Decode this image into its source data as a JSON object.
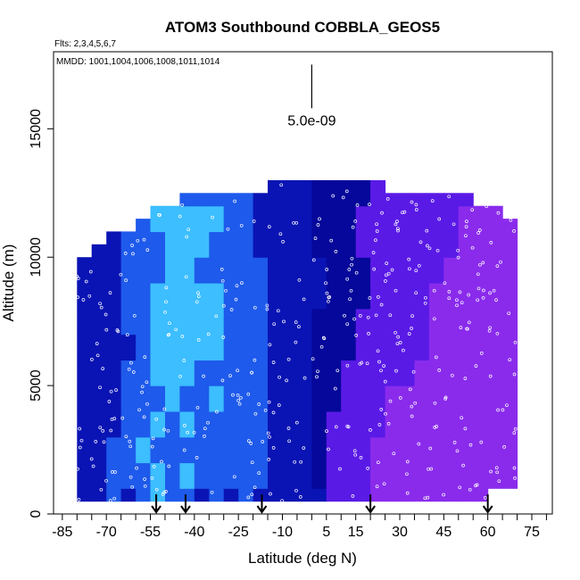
{
  "chart_data": {
    "type": "heatmap",
    "title": "ATOM3 Southbound COBBLA_GEOS5",
    "flights_label": "Flts: 2,3,4,5,6,7",
    "mmdd_label": "MMDD: 1001,1004,1006,1008,1011,1014",
    "xlabel": "Latitude (deg N)",
    "ylabel": "Altitude (m)",
    "xlim": [
      -88,
      82
    ],
    "ylim": [
      0,
      18000
    ],
    "x_ticks": [
      -85,
      -70,
      -55,
      -40,
      -25,
      -10,
      5,
      15,
      30,
      45,
      60,
      75
    ],
    "x_minor_ticks": [
      -80,
      -75,
      -65,
      -60,
      -50,
      -45,
      -35,
      -30,
      -20,
      -15,
      -5,
      0,
      10,
      20,
      25,
      35,
      40,
      50,
      55,
      65,
      70,
      80
    ],
    "y_ticks": [
      0,
      5000,
      10000,
      15000
    ],
    "scale_bar_label": "5.0e-09",
    "scale_bar_x": 0,
    "scale_bar_y": [
      15800,
      17500
    ],
    "profile_arrows_lat": [
      -53,
      -43,
      -17,
      20,
      60
    ],
    "colors": {
      "dark_blue": "#0a14b4",
      "mid_blue": "#1e5aeb",
      "light_blue": "#3cbeff",
      "navy": "#05089a",
      "violet": "#5a1ae6",
      "purple": "#8a2bec"
    },
    "envelope": {
      "lat_edges": [
        -80,
        -75,
        -70,
        -65,
        -60,
        -55,
        -50,
        -45,
        -40,
        -35,
        -30,
        -25,
        -20,
        -15,
        -10,
        -5,
        0,
        5,
        10,
        15,
        20,
        25,
        30,
        35,
        40,
        45,
        50,
        55,
        60,
        65,
        70
      ],
      "ceilings": [
        10000,
        10500,
        11000,
        11000,
        11500,
        12000,
        12000,
        12500,
        12500,
        12500,
        12500,
        12500,
        12500,
        13000,
        13000,
        13000,
        13000,
        13000,
        13000,
        13000,
        13000,
        12500,
        12500,
        12500,
        12500,
        12500,
        12500,
        12000,
        12000,
        11500
      ],
      "floors": [
        500,
        500,
        500,
        500,
        500,
        500,
        500,
        500,
        500,
        500,
        500,
        500,
        500,
        500,
        500,
        500,
        500,
        500,
        500,
        500,
        500,
        500,
        500,
        500,
        500,
        500,
        500,
        500,
        1000,
        1000
      ]
    },
    "altitude_bins": [
      0,
      1000,
      2000,
      3000,
      4000,
      5000,
      6000,
      7000,
      8000,
      9000,
      10000,
      11000,
      12000,
      13000
    ],
    "concentration_grid_levels": [
      [
        0,
        0,
        1,
        0,
        1,
        2,
        1,
        1,
        0,
        1,
        0,
        1,
        0,
        0,
        0,
        0,
        0,
        4,
        4,
        4,
        5,
        5,
        5,
        5,
        5,
        5,
        5,
        5,
        5,
        5
      ],
      [
        0,
        0,
        1,
        1,
        1,
        2,
        1,
        2,
        1,
        1,
        1,
        1,
        1,
        0,
        0,
        0,
        3,
        4,
        4,
        4,
        5,
        5,
        5,
        5,
        5,
        5,
        5,
        5,
        5,
        5
      ],
      [
        0,
        0,
        1,
        1,
        2,
        1,
        1,
        1,
        1,
        1,
        1,
        1,
        1,
        0,
        0,
        0,
        3,
        4,
        4,
        4,
        5,
        5,
        5,
        5,
        5,
        5,
        5,
        5,
        5,
        5
      ],
      [
        0,
        0,
        0,
        1,
        1,
        2,
        1,
        2,
        1,
        1,
        1,
        1,
        1,
        0,
        0,
        0,
        3,
        4,
        4,
        4,
        4,
        5,
        5,
        5,
        5,
        5,
        5,
        5,
        5,
        5
      ],
      [
        0,
        0,
        0,
        1,
        1,
        1,
        2,
        1,
        1,
        2,
        1,
        1,
        1,
        0,
        0,
        0,
        3,
        3,
        4,
        4,
        4,
        5,
        5,
        5,
        5,
        5,
        5,
        5,
        5,
        5
      ],
      [
        0,
        0,
        0,
        1,
        1,
        2,
        2,
        2,
        1,
        1,
        1,
        1,
        1,
        0,
        0,
        0,
        3,
        3,
        4,
        4,
        4,
        4,
        4,
        5,
        5,
        5,
        5,
        5,
        5,
        5
      ],
      [
        0,
        0,
        0,
        0,
        1,
        2,
        2,
        2,
        2,
        2,
        1,
        1,
        1,
        0,
        0,
        0,
        3,
        3,
        3,
        4,
        4,
        4,
        4,
        4,
        5,
        5,
        5,
        5,
        5,
        5
      ],
      [
        0,
        0,
        0,
        1,
        1,
        2,
        2,
        2,
        2,
        2,
        1,
        1,
        1,
        0,
        0,
        0,
        3,
        3,
        3,
        4,
        4,
        4,
        4,
        4,
        5,
        5,
        5,
        5,
        5,
        5
      ],
      [
        0,
        0,
        0,
        1,
        1,
        2,
        2,
        2,
        2,
        2,
        1,
        1,
        1,
        0,
        0,
        0,
        0,
        3,
        3,
        3,
        4,
        4,
        4,
        4,
        5,
        5,
        5,
        5,
        5,
        5
      ],
      [
        0,
        0,
        0,
        1,
        1,
        1,
        2,
        2,
        1,
        1,
        1,
        1,
        1,
        0,
        0,
        0,
        0,
        3,
        3,
        3,
        4,
        4,
        4,
        4,
        4,
        5,
        5,
        5,
        5,
        5
      ],
      [
        0,
        0,
        0,
        1,
        1,
        1,
        2,
        2,
        2,
        1,
        1,
        1,
        0,
        0,
        0,
        0,
        3,
        3,
        3,
        4,
        4,
        4,
        4,
        4,
        4,
        4,
        5,
        5,
        5,
        5
      ],
      [
        0,
        0,
        1,
        1,
        1,
        2,
        2,
        2,
        2,
        2,
        1,
        1,
        0,
        0,
        0,
        0,
        3,
        3,
        3,
        4,
        4,
        4,
        4,
        4,
        4,
        4,
        5,
        5,
        5,
        5
      ],
      [
        0,
        0,
        0,
        0,
        1,
        1,
        1,
        1,
        1,
        1,
        1,
        1,
        0,
        0,
        0,
        0,
        3,
        3,
        3,
        3,
        4,
        4,
        4,
        4,
        4,
        4,
        4,
        4,
        5,
        5
      ]
    ]
  }
}
